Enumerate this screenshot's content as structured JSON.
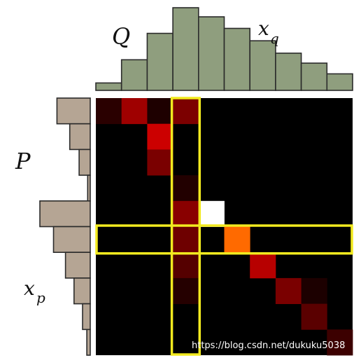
{
  "labels": {
    "Q": "Q",
    "P": "P",
    "x_q_base": "x",
    "x_q_sub": "q",
    "x_p_base": "x",
    "x_p_sub": "p"
  },
  "watermark": "https://blog.csdn.net/dukuku5038",
  "colors": {
    "q_bar_fill": "#8f9e7e",
    "p_bar_fill": "#b5a594",
    "bar_stroke": "#2b2b2b",
    "matrix_background": "#000000",
    "highlight_stroke": "#f2ea1f"
  },
  "chart_data": {
    "type": "heatmap",
    "description_free": true,
    "q_histogram": {
      "bins": 10,
      "values": [
        0.09,
        0.37,
        0.69,
        1.0,
        0.89,
        0.75,
        0.6,
        0.45,
        0.33,
        0.2
      ]
    },
    "p_histogram": {
      "bins": 10,
      "values": [
        0.39,
        0.24,
        0.13,
        0.03,
        0.59,
        0.43,
        0.29,
        0.19,
        0.09,
        0.04
      ]
    },
    "matrix": {
      "rows": 10,
      "cols": 10,
      "cells": [
        {
          "r": 0,
          "c": 0,
          "color": "#2a0000"
        },
        {
          "r": 0,
          "c": 1,
          "color": "#9f0000"
        },
        {
          "r": 0,
          "c": 2,
          "color": "#1e0000"
        },
        {
          "r": 0,
          "c": 3,
          "color": "#7c0000"
        },
        {
          "r": 1,
          "c": 2,
          "color": "#cc0000"
        },
        {
          "r": 2,
          "c": 2,
          "color": "#7a0000"
        },
        {
          "r": 3,
          "c": 3,
          "color": "#220000"
        },
        {
          "r": 4,
          "c": 3,
          "color": "#890000"
        },
        {
          "r": 4,
          "c": 4,
          "color": "#ffffff"
        },
        {
          "r": 5,
          "c": 3,
          "color": "#6e0000"
        },
        {
          "r": 5,
          "c": 5,
          "color": "#ff6a00"
        },
        {
          "r": 6,
          "c": 3,
          "color": "#550000"
        },
        {
          "r": 6,
          "c": 6,
          "color": "#b70000"
        },
        {
          "r": 7,
          "c": 3,
          "color": "#250000"
        },
        {
          "r": 7,
          "c": 7,
          "color": "#7a0000"
        },
        {
          "r": 7,
          "c": 8,
          "color": "#1c0000"
        },
        {
          "r": 8,
          "c": 8,
          "color": "#5a0000"
        },
        {
          "r": 9,
          "c": 9,
          "color": "#3c0000"
        }
      ]
    },
    "highlight": {
      "column": 3,
      "row": 5
    }
  }
}
